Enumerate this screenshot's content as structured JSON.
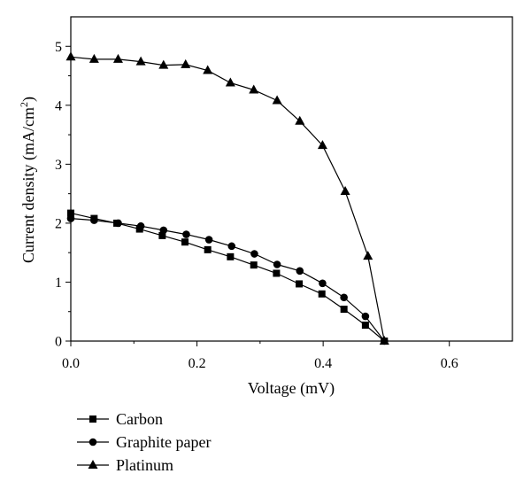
{
  "chart_data": {
    "type": "line",
    "xlabel": "Voltage (mV)",
    "ylabel": "Current density (mA/cm",
    "ylabel_superscript": "2",
    "ylabel_suffix": ")",
    "xlim": [
      0,
      0.7
    ],
    "ylim": [
      0,
      5.5
    ],
    "xticks": [
      0.0,
      0.2,
      0.4,
      0.6
    ],
    "xtick_labels": [
      "0.0",
      "0.2",
      "0.4",
      "0.6"
    ],
    "yticks": [
      0,
      1,
      2,
      3,
      4,
      5
    ],
    "ytick_labels": [
      "0",
      "1",
      "2",
      "3",
      "4",
      "5"
    ],
    "grid": false,
    "legend_position": "below",
    "series": [
      {
        "name": "Carbon",
        "marker": "square",
        "x": [
          0.0,
          0.037,
          0.073,
          0.109,
          0.145,
          0.181,
          0.217,
          0.253,
          0.29,
          0.326,
          0.362,
          0.398,
          0.433,
          0.467,
          0.497
        ],
        "y": [
          2.17,
          2.08,
          2.0,
          1.9,
          1.79,
          1.68,
          1.55,
          1.43,
          1.29,
          1.15,
          0.97,
          0.8,
          0.54,
          0.27,
          0.0
        ]
      },
      {
        "name": "Graphite paper",
        "marker": "circle",
        "x": [
          0.0,
          0.037,
          0.075,
          0.111,
          0.147,
          0.183,
          0.219,
          0.255,
          0.291,
          0.327,
          0.363,
          0.399,
          0.433,
          0.467,
          0.497
        ],
        "y": [
          2.08,
          2.05,
          2.0,
          1.95,
          1.88,
          1.81,
          1.72,
          1.61,
          1.48,
          1.3,
          1.19,
          0.98,
          0.74,
          0.42,
          0.0
        ]
      },
      {
        "name": "Platinum",
        "marker": "triangle",
        "x": [
          0.0,
          0.037,
          0.075,
          0.111,
          0.147,
          0.182,
          0.217,
          0.253,
          0.29,
          0.327,
          0.363,
          0.399,
          0.435,
          0.471,
          0.497
        ],
        "y": [
          4.82,
          4.78,
          4.78,
          4.74,
          4.68,
          4.69,
          4.59,
          4.38,
          4.26,
          4.08,
          3.73,
          3.32,
          2.54,
          1.44,
          0.0
        ]
      }
    ]
  }
}
